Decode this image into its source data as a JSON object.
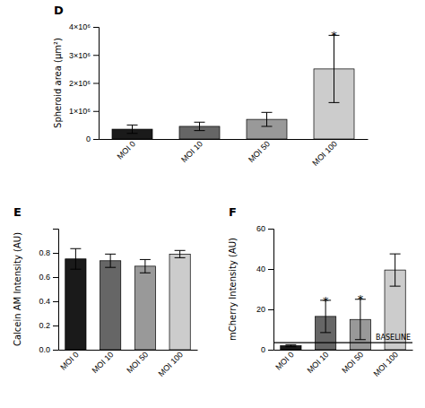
{
  "chart_data": [
    {
      "type": "bar",
      "title": "D",
      "categories": [
        "MOI 0",
        "MOI 10",
        "MOI 50",
        "MOI 100"
      ],
      "values": [
        350000,
        450000,
        700000,
        2500000
      ],
      "errors": [
        150000,
        150000,
        250000,
        1200000
      ],
      "colors": [
        "#1a1a1a",
        "#666666",
        "#999999",
        "#cccccc"
      ],
      "y_label": "Spheroid area (µm²)",
      "ylim": [
        0,
        4000000
      ],
      "yticks": [
        0,
        {
          "value": 1000000,
          "label": "1×10⁶"
        },
        {
          "value": 2000000,
          "label": "2×10⁶"
        },
        {
          "value": 3000000,
          "label": "3×10⁶"
        },
        {
          "value": 4000000,
          "label": "4×10⁶"
        }
      ],
      "annotations": [
        {
          "text": "*",
          "x": "MOI 100",
          "y": 3800000
        }
      ]
    },
    {
      "type": "bar",
      "title": "E",
      "categories": [
        "MOI 0",
        "MOI 10",
        "MOI 50",
        "MOI 100"
      ],
      "values": [
        0.75,
        0.735,
        0.69,
        0.79
      ],
      "errors": [
        0.085,
        0.055,
        0.055,
        0.03
      ],
      "colors": [
        "#1a1a1a",
        "#666666",
        "#999999",
        "#cccccc"
      ],
      "y_label": "Calcein AM Intensity (AU)",
      "ylim": [
        0,
        1.0
      ],
      "yticks": [
        {
          "value": 0,
          "label": "0.0"
        },
        0.2,
        0.4,
        0.6,
        0.8
      ]
    },
    {
      "type": "bar",
      "title": "F",
      "categories": [
        "MOI 0",
        "MOI 10",
        "MOI 50",
        "MOI 100"
      ],
      "values": [
        2.0,
        16.5,
        15.0,
        39.5
      ],
      "errors": [
        0.5,
        8.0,
        10.0,
        8.0
      ],
      "colors": [
        "#1a1a1a",
        "#666666",
        "#999999",
        "#cccccc"
      ],
      "y_label": "mCherry Intensity (AU)",
      "ylim": [
        0,
        60
      ],
      "yticks": [
        0,
        20,
        40,
        60
      ],
      "hlines": [
        {
          "y": 3.5,
          "label": "BASELINE"
        }
      ],
      "annotations": [
        {
          "text": "*",
          "x": "MOI 10",
          "y": 26.0
        },
        {
          "text": "*",
          "x": "MOI 50",
          "y": 26.5
        }
      ]
    }
  ]
}
